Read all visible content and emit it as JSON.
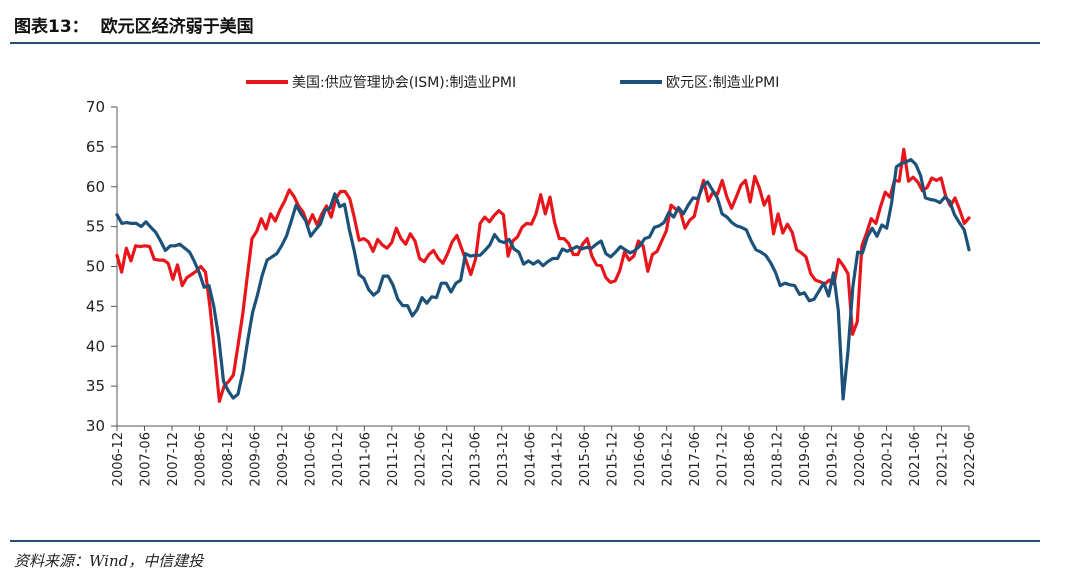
{
  "header": {
    "figure_no": "图表13：",
    "title": "欧元区经济弱于美国"
  },
  "source": "资料来源：Wind，中信建投",
  "colors": {
    "us": "#e8151b",
    "ez": "#1c5279",
    "rule": "#1f4e79",
    "axis": "#555555"
  },
  "chart_data": {
    "type": "line",
    "title": "欧元区经济弱于美国",
    "xlabel": "",
    "ylabel": "",
    "ylim": [
      30,
      70
    ],
    "yticks": [
      30,
      35,
      40,
      45,
      50,
      55,
      60,
      65,
      70
    ],
    "grid": false,
    "legend_position": "top",
    "x_tick_labels": [
      "2006-12",
      "2007-06",
      "2007-12",
      "2008-06",
      "2008-12",
      "2009-06",
      "2009-12",
      "2010-06",
      "2010-12",
      "2011-06",
      "2011-12",
      "2012-06",
      "2012-12",
      "2013-06",
      "2013-12",
      "2014-06",
      "2014-12",
      "2015-06",
      "2015-12",
      "2016-06",
      "2016-12",
      "2017-06",
      "2017-12",
      "2018-06",
      "2018-12",
      "2019-06",
      "2019-12",
      "2020-06",
      "2020-12",
      "2021-06",
      "2021-12",
      "2022-06"
    ],
    "x_start": "2006-12",
    "series": [
      {
        "name": "美国:供应管理协会(ISM):制造业PMI",
        "color": "#e8151b",
        "values": [
          51.4,
          49.3,
          52.3,
          50.7,
          52.6,
          52.5,
          52.6,
          52.5,
          50.9,
          50.8,
          50.8,
          50.4,
          48.4,
          50.2,
          47.6,
          48.6,
          49.0,
          49.4,
          50.0,
          49.3,
          44.8,
          38.9,
          33.1,
          35.0,
          35.6,
          36.4,
          40.1,
          44.0,
          48.9,
          53.5,
          54.4,
          56.0,
          54.7,
          56.6,
          55.7,
          57.1,
          58.2,
          59.6,
          58.8,
          57.6,
          56.8,
          55.2,
          56.5,
          55.2,
          56.6,
          57.6,
          56.2,
          58.5,
          59.4,
          59.4,
          58.5,
          56.1,
          53.3,
          53.5,
          53.1,
          51.9,
          53.4,
          52.7,
          52.3,
          53.0,
          54.8,
          53.5,
          52.8,
          54.1,
          53.2,
          51.0,
          50.6,
          51.5,
          52.0,
          51.0,
          50.4,
          51.6,
          53.1,
          53.9,
          52.3,
          50.7,
          49.0,
          50.9,
          55.4,
          56.2,
          55.6,
          56.4,
          57.0,
          56.5,
          51.3,
          53.2,
          53.7,
          54.9,
          55.4,
          55.3,
          56.6,
          59.0,
          56.6,
          58.7,
          55.5,
          53.5,
          53.5,
          52.9,
          51.5,
          51.5,
          52.8,
          53.5,
          51.3,
          50.2,
          50.1,
          48.6,
          48.0,
          48.2,
          49.5,
          51.8,
          50.8,
          51.3,
          53.2,
          52.6,
          49.4,
          51.5,
          51.9,
          53.2,
          54.5,
          57.7,
          57.2,
          56.9,
          54.8,
          55.8,
          56.3,
          58.8,
          60.8,
          58.2,
          59.3,
          59.1,
          60.8,
          58.7,
          57.3,
          58.7,
          60.2,
          60.8,
          58.1,
          61.3,
          59.8,
          57.7,
          58.8,
          54.1,
          56.6,
          54.2,
          55.3,
          54.3,
          52.1,
          51.7,
          51.2,
          49.1,
          48.3,
          48.1,
          47.8,
          48.3,
          47.8,
          50.9,
          50.1,
          49.1,
          41.5,
          43.1,
          52.6,
          54.2,
          56.0,
          55.4,
          57.5,
          59.3,
          58.7,
          60.8,
          60.7,
          64.7,
          60.7,
          61.2,
          60.6,
          59.5,
          59.9,
          61.1,
          60.8,
          61.1,
          58.8,
          57.6,
          58.6,
          57.1,
          55.4,
          56.1
        ]
      },
      {
        "name": "欧元区:制造业PMI",
        "color": "#1c5279",
        "values": [
          56.5,
          55.4,
          55.5,
          55.4,
          55.4,
          55.0,
          55.6,
          54.9,
          54.3,
          53.2,
          52.0,
          52.6,
          52.6,
          52.8,
          52.3,
          51.8,
          50.6,
          49.2,
          47.4,
          47.6,
          45.0,
          41.1,
          35.6,
          34.4,
          33.5,
          34.0,
          36.8,
          40.7,
          44.2,
          46.4,
          48.9,
          50.8,
          51.2,
          51.6,
          52.6,
          53.8,
          55.7,
          57.7,
          56.6,
          55.7,
          53.8,
          54.6,
          55.3,
          57.1,
          57.3,
          59.1,
          57.5,
          57.8,
          54.6,
          52.0,
          49.0,
          48.5,
          47.1,
          46.4,
          46.9,
          48.8,
          48.8,
          47.7,
          45.9,
          45.1,
          45.1,
          43.8,
          44.6,
          46.1,
          45.4,
          46.2,
          46.1,
          47.9,
          47.9,
          46.8,
          47.9,
          48.3,
          51.6,
          51.3,
          51.4,
          51.4,
          52.0,
          52.7,
          54.0,
          53.2,
          53.0,
          53.4,
          52.2,
          51.8,
          50.3,
          50.7,
          50.3,
          50.7,
          50.1,
          50.6,
          51.0,
          51.0,
          52.2,
          51.9,
          52.2,
          52.5,
          52.2,
          52.4,
          52.3,
          52.8,
          53.2,
          51.6,
          51.2,
          51.8,
          52.5,
          52.1,
          51.7,
          52.0,
          52.6,
          53.5,
          53.7,
          54.9,
          55.1,
          55.5,
          56.8,
          56.2,
          57.4,
          56.6,
          57.7,
          58.6,
          58.5,
          60.1,
          60.6,
          59.6,
          58.6,
          56.6,
          56.2,
          55.5,
          55.1,
          54.9,
          54.6,
          53.2,
          52.1,
          51.8,
          51.4,
          50.5,
          49.3,
          47.6,
          47.9,
          47.7,
          47.6,
          46.5,
          46.7,
          45.7,
          45.9,
          46.9,
          47.9,
          46.3,
          49.2,
          44.5,
          33.4,
          39.4,
          47.4,
          51.8,
          51.7,
          53.7,
          54.8,
          53.8,
          55.2,
          54.8,
          57.9,
          62.5,
          62.9,
          63.1,
          63.4,
          62.8,
          61.4,
          58.6,
          58.4,
          58.3,
          58.0,
          58.7,
          58.2,
          56.5,
          55.5,
          54.6,
          52.1
        ]
      }
    ]
  }
}
